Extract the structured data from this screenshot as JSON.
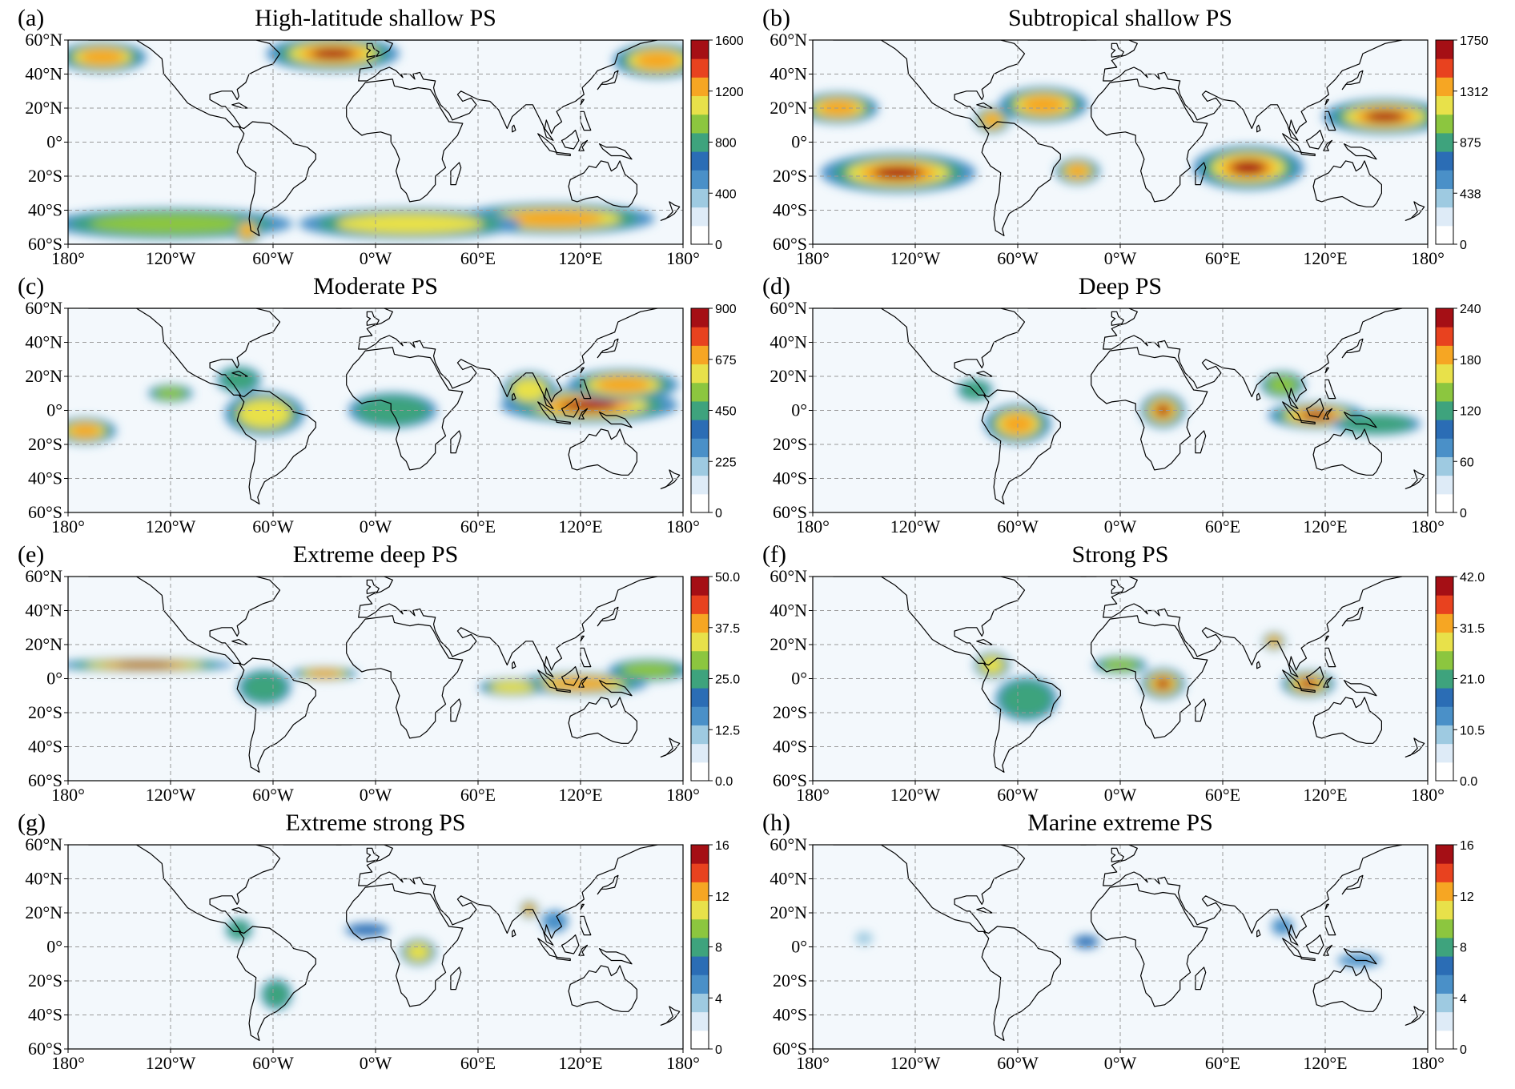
{
  "lat_ticks": [
    "60°N",
    "40°N",
    "20°N",
    "0°",
    "20°S",
    "40°S",
    "60°S"
  ],
  "lon_ticks": [
    "180°",
    "120°W",
    "60°W",
    "0°W",
    "60°E",
    "120°E",
    "180°"
  ],
  "colormap": [
    "#ffffff",
    "#deebf7",
    "#9ecae1",
    "#4a90c8",
    "#2b6db5",
    "#3ea37d",
    "#8cc63f",
    "#e8e14a",
    "#f6a623",
    "#e8421f",
    "#a50f15"
  ],
  "chart_data": [
    {
      "type": "heatmap",
      "letter": "(a)",
      "title": "High-latitude shallow PS",
      "colorbar": {
        "ticks": [
          "0",
          "400",
          "800",
          "1200",
          "1600"
        ],
        "max": 1600
      },
      "hotspots": [
        {
          "lon": -25,
          "lat": 52,
          "value": 1.0,
          "rx": 30,
          "ry": 8
        },
        {
          "lon": -160,
          "lat": 50,
          "value": 0.85,
          "rx": 20,
          "ry": 7
        },
        {
          "lon": 165,
          "lat": 48,
          "value": 0.8,
          "rx": 20,
          "ry": 8
        },
        {
          "lon": 105,
          "lat": -45,
          "value": 0.8,
          "rx": 45,
          "ry": 7
        },
        {
          "lon": -120,
          "lat": -48,
          "value": 0.6,
          "rx": 55,
          "ry": 7
        },
        {
          "lon": 20,
          "lat": -48,
          "value": 0.65,
          "rx": 50,
          "ry": 7
        },
        {
          "lon": -75,
          "lat": -52,
          "value": 0.9,
          "rx": 6,
          "ry": 6
        }
      ]
    },
    {
      "type": "heatmap",
      "letter": "(b)",
      "title": "Subtropical shallow PS",
      "colorbar": {
        "ticks": [
          "0",
          "438",
          "875",
          "1312",
          "1750"
        ],
        "max": 1750
      },
      "hotspots": [
        {
          "lon": -130,
          "lat": -18,
          "value": 1.0,
          "rx": 35,
          "ry": 9
        },
        {
          "lon": -165,
          "lat": 20,
          "value": 0.85,
          "rx": 18,
          "ry": 7
        },
        {
          "lon": -45,
          "lat": 22,
          "value": 0.9,
          "rx": 20,
          "ry": 8
        },
        {
          "lon": -75,
          "lat": 13,
          "value": 0.85,
          "rx": 8,
          "ry": 6
        },
        {
          "lon": -25,
          "lat": -17,
          "value": 0.85,
          "rx": 10,
          "ry": 6
        },
        {
          "lon": 75,
          "lat": -15,
          "value": 0.95,
          "rx": 25,
          "ry": 10
        },
        {
          "lon": 155,
          "lat": 15,
          "value": 0.95,
          "rx": 28,
          "ry": 8
        }
      ]
    },
    {
      "type": "heatmap",
      "letter": "(c)",
      "title": "Moderate PS",
      "colorbar": {
        "ticks": [
          "0",
          "225",
          "450",
          "675",
          "900"
        ],
        "max": 900
      },
      "hotspots": [
        {
          "lon": 125,
          "lat": 3,
          "value": 1.0,
          "rx": 40,
          "ry": 8
        },
        {
          "lon": 145,
          "lat": 15,
          "value": 0.8,
          "rx": 25,
          "ry": 7
        },
        {
          "lon": 90,
          "lat": 12,
          "value": 0.65,
          "rx": 12,
          "ry": 8
        },
        {
          "lon": -170,
          "lat": -12,
          "value": 0.8,
          "rx": 14,
          "ry": 6
        },
        {
          "lon": -65,
          "lat": -2,
          "value": 0.7,
          "rx": 18,
          "ry": 10
        },
        {
          "lon": -80,
          "lat": 18,
          "value": 0.55,
          "rx": 10,
          "ry": 6
        },
        {
          "lon": -120,
          "lat": 10,
          "value": 0.6,
          "rx": 10,
          "ry": 4
        },
        {
          "lon": 10,
          "lat": 0,
          "value": 0.45,
          "rx": 20,
          "ry": 8
        }
      ]
    },
    {
      "type": "heatmap",
      "letter": "(d)",
      "title": "Deep PS",
      "colorbar": {
        "ticks": [
          "0",
          "60",
          "120",
          "180",
          "240"
        ],
        "max": 240
      },
      "hotspots": [
        {
          "lon": 115,
          "lat": -3,
          "value": 0.95,
          "rx": 22,
          "ry": 6
        },
        {
          "lon": 25,
          "lat": 0,
          "value": 1.0,
          "rx": 10,
          "ry": 8
        },
        {
          "lon": -60,
          "lat": -8,
          "value": 0.75,
          "rx": 15,
          "ry": 9
        },
        {
          "lon": 95,
          "lat": 15,
          "value": 0.6,
          "rx": 10,
          "ry": 6
        },
        {
          "lon": -85,
          "lat": 12,
          "value": 0.55,
          "rx": 8,
          "ry": 5
        },
        {
          "lon": 150,
          "lat": -8,
          "value": 0.55,
          "rx": 20,
          "ry": 5
        }
      ]
    },
    {
      "type": "heatmap",
      "letter": "(e)",
      "title": "Extreme deep PS",
      "colorbar": {
        "ticks": [
          "0.0",
          "12.5",
          "25.0",
          "37.5",
          "50.0"
        ],
        "max": 50.0
      },
      "hotspots": [
        {
          "lon": -135,
          "lat": 8,
          "value": 1.0,
          "rx": 40,
          "ry": 3
        },
        {
          "lon": -30,
          "lat": 3,
          "value": 0.8,
          "rx": 15,
          "ry": 3
        },
        {
          "lon": 120,
          "lat": -3,
          "value": 0.85,
          "rx": 30,
          "ry": 5
        },
        {
          "lon": 80,
          "lat": -5,
          "value": 0.7,
          "rx": 15,
          "ry": 4
        },
        {
          "lon": 160,
          "lat": 5,
          "value": 0.6,
          "rx": 18,
          "ry": 5
        },
        {
          "lon": -65,
          "lat": -5,
          "value": 0.45,
          "rx": 12,
          "ry": 8
        }
      ]
    },
    {
      "type": "heatmap",
      "letter": "(f)",
      "title": "Strong PS",
      "colorbar": {
        "ticks": [
          "0.0",
          "10.5",
          "21.0",
          "31.5",
          "42.0"
        ],
        "max": 42.0
      },
      "hotspots": [
        {
          "lon": 25,
          "lat": -3,
          "value": 1.0,
          "rx": 10,
          "ry": 7
        },
        {
          "lon": 110,
          "lat": -3,
          "value": 0.95,
          "rx": 12,
          "ry": 6
        },
        {
          "lon": 90,
          "lat": 22,
          "value": 0.85,
          "rx": 5,
          "ry": 4
        },
        {
          "lon": -75,
          "lat": 8,
          "value": 0.7,
          "rx": 8,
          "ry": 6
        },
        {
          "lon": -55,
          "lat": -12,
          "value": 0.5,
          "rx": 14,
          "ry": 10
        },
        {
          "lon": 0,
          "lat": 8,
          "value": 0.6,
          "rx": 12,
          "ry": 4
        }
      ]
    },
    {
      "type": "heatmap",
      "letter": "(g)",
      "title": "Extreme strong PS",
      "colorbar": {
        "ticks": [
          "0",
          "4",
          "8",
          "12",
          "16"
        ],
        "max": 16
      },
      "hotspots": [
        {
          "lon": 90,
          "lat": 22,
          "value": 0.8,
          "rx": 4,
          "ry": 4
        },
        {
          "lon": 25,
          "lat": -3,
          "value": 0.65,
          "rx": 8,
          "ry": 6
        },
        {
          "lon": -58,
          "lat": -28,
          "value": 0.5,
          "rx": 7,
          "ry": 7
        },
        {
          "lon": -80,
          "lat": 10,
          "value": 0.45,
          "rx": 6,
          "ry": 5
        },
        {
          "lon": -5,
          "lat": 10,
          "value": 0.4,
          "rx": 10,
          "ry": 3
        },
        {
          "lon": 105,
          "lat": 15,
          "value": 0.35,
          "rx": 6,
          "ry": 5
        }
      ]
    },
    {
      "type": "heatmap",
      "letter": "(h)",
      "title": "Marine extreme PS",
      "colorbar": {
        "ticks": [
          "0",
          "4",
          "8",
          "12",
          "16"
        ],
        "max": 16
      },
      "hotspots": [
        {
          "lon": -20,
          "lat": 3,
          "value": 0.4,
          "rx": 6,
          "ry": 3
        },
        {
          "lon": 140,
          "lat": -8,
          "value": 0.35,
          "rx": 10,
          "ry": 3
        },
        {
          "lon": 95,
          "lat": 12,
          "value": 0.3,
          "rx": 5,
          "ry": 4
        },
        {
          "lon": -150,
          "lat": 5,
          "value": 0.2,
          "rx": 4,
          "ry": 3
        }
      ]
    }
  ]
}
